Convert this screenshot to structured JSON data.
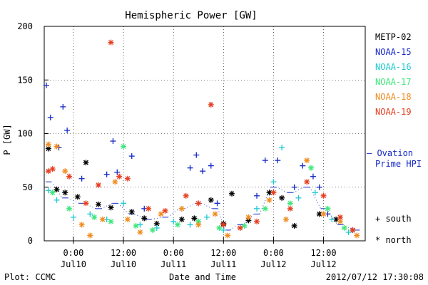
{
  "chart_data": {
    "type": "scatter",
    "title": "Hemispheric Power [GW]",
    "ylabel": "P [GW]",
    "xlabel": "Date and Time",
    "ylim": [
      0,
      200
    ],
    "xlim": [
      "2012-07-09T17:00",
      "2012-07-12T22:00"
    ],
    "y_ticks": [
      0,
      50,
      100,
      150,
      200
    ],
    "x_ticks": [
      {
        "time": "2012-07-10T00:00",
        "label1": "0:00",
        "label2": "Jul10"
      },
      {
        "time": "2012-07-10T12:00",
        "label1": "12:00",
        "label2": "Jul10"
      },
      {
        "time": "2012-07-11T00:00",
        "label1": "0:00",
        "label2": "Jul11"
      },
      {
        "time": "2012-07-11T12:00",
        "label1": "12:00",
        "label2": "Jul11"
      },
      {
        "time": "2012-07-12T00:00",
        "label1": "0:00",
        "label2": "Jul12"
      },
      {
        "time": "2012-07-12T12:00",
        "label1": "12:00",
        "label2": "Jul12"
      }
    ],
    "grid": true,
    "legend": {
      "placement": "right",
      "symbols": [
        {
          "glyph": "+",
          "label": "south"
        },
        {
          "glyph": "*",
          "label": "north"
        }
      ],
      "ovation_label_1": "— Ovation",
      "ovation_label_2": "Prime HPI"
    },
    "series": [
      {
        "name": "METP-02",
        "color": "#000000",
        "marker": "*",
        "points": [
          [
            "2012-07-09T18:00",
            86
          ],
          [
            "2012-07-09T20:00",
            48
          ],
          [
            "2012-07-09T22:00",
            45
          ],
          [
            "2012-07-10T01:00",
            41
          ],
          [
            "2012-07-10T03:00",
            73
          ],
          [
            "2012-07-10T06:00",
            34
          ],
          [
            "2012-07-10T09:00",
            31
          ],
          [
            "2012-07-10T14:00",
            27
          ],
          [
            "2012-07-10T17:00",
            21
          ],
          [
            "2012-07-10T20:00",
            16
          ],
          [
            "2012-07-11T02:00",
            20
          ],
          [
            "2012-07-11T05:00",
            21
          ],
          [
            "2012-07-11T09:00",
            38
          ],
          [
            "2012-07-11T12:00",
            16
          ],
          [
            "2012-07-11T14:00",
            44
          ],
          [
            "2012-07-11T18:00",
            19
          ],
          [
            "2012-07-11T23:00",
            45
          ],
          [
            "2012-07-12T02:00",
            40
          ],
          [
            "2012-07-12T05:00",
            14
          ],
          [
            "2012-07-12T11:00",
            25
          ],
          [
            "2012-07-12T15:00",
            20
          ],
          [
            "2012-07-12T19:00",
            10
          ]
        ]
      },
      {
        "name": "NOAA-15",
        "color": "#1428c8",
        "marker": "+",
        "points": [
          [
            "2012-07-09T17:30",
            145
          ],
          [
            "2012-07-09T18:30",
            115
          ],
          [
            "2012-07-09T20:30",
            87
          ],
          [
            "2012-07-09T21:30",
            125
          ],
          [
            "2012-07-09T22:30",
            103
          ],
          [
            "2012-07-10T02:00",
            58
          ],
          [
            "2012-07-10T08:00",
            62
          ],
          [
            "2012-07-10T09:30",
            93
          ],
          [
            "2012-07-10T10:30",
            64
          ],
          [
            "2012-07-10T14:00",
            79
          ],
          [
            "2012-07-10T17:00",
            30
          ],
          [
            "2012-07-11T04:00",
            68
          ],
          [
            "2012-07-11T05:30",
            80
          ],
          [
            "2012-07-11T07:00",
            65
          ],
          [
            "2012-07-11T09:00",
            70
          ],
          [
            "2012-07-11T10:30",
            35
          ],
          [
            "2012-07-11T20:00",
            42
          ],
          [
            "2012-07-11T22:00",
            75
          ],
          [
            "2012-07-12T01:00",
            75
          ],
          [
            "2012-07-12T05:00",
            50
          ],
          [
            "2012-07-12T07:00",
            70
          ],
          [
            "2012-07-12T09:30",
            60
          ],
          [
            "2012-07-12T11:00",
            50
          ],
          [
            "2012-07-12T13:00",
            25
          ]
        ]
      },
      {
        "name": "NOAA-16",
        "color": "#1ec8d2",
        "marker": "+",
        "points": [
          [
            "2012-07-09T18:00",
            47
          ],
          [
            "2012-07-09T20:00",
            38
          ],
          [
            "2012-07-10T00:00",
            22
          ],
          [
            "2012-07-10T04:00",
            25
          ],
          [
            "2012-07-10T08:00",
            20
          ],
          [
            "2012-07-10T12:00",
            35
          ],
          [
            "2012-07-10T16:00",
            15
          ],
          [
            "2012-07-10T20:00",
            12
          ],
          [
            "2012-07-11T00:00",
            18
          ],
          [
            "2012-07-11T04:00",
            15
          ],
          [
            "2012-07-11T08:00",
            22
          ],
          [
            "2012-07-11T12:00",
            10
          ],
          [
            "2012-07-11T16:00",
            12
          ],
          [
            "2012-07-11T20:00",
            30
          ],
          [
            "2012-07-12T00:00",
            55
          ],
          [
            "2012-07-12T02:00",
            87
          ],
          [
            "2012-07-12T06:00",
            40
          ],
          [
            "2012-07-12T10:00",
            45
          ],
          [
            "2012-07-12T14:00",
            20
          ],
          [
            "2012-07-12T18:00",
            8
          ]
        ]
      },
      {
        "name": "NOAA-17",
        "color": "#3ce67a",
        "marker": "*",
        "points": [
          [
            "2012-07-09T19:00",
            45
          ],
          [
            "2012-07-09T23:00",
            30
          ],
          [
            "2012-07-10T05:00",
            22
          ],
          [
            "2012-07-10T09:00",
            18
          ],
          [
            "2012-07-10T12:00",
            88
          ],
          [
            "2012-07-10T15:00",
            14
          ],
          [
            "2012-07-10T19:00",
            10
          ],
          [
            "2012-07-11T01:00",
            15
          ],
          [
            "2012-07-11T06:00",
            18
          ],
          [
            "2012-07-11T11:00",
            12
          ],
          [
            "2012-07-11T17:00",
            14
          ],
          [
            "2012-07-11T22:00",
            30
          ],
          [
            "2012-07-12T04:00",
            35
          ],
          [
            "2012-07-12T09:00",
            68
          ],
          [
            "2012-07-12T13:00",
            30
          ],
          [
            "2012-07-12T17:00",
            12
          ]
        ]
      },
      {
        "name": "NOAA-18",
        "color": "#f08c1e",
        "marker": "*",
        "points": [
          [
            "2012-07-09T18:00",
            90
          ],
          [
            "2012-07-09T20:00",
            88
          ],
          [
            "2012-07-09T22:00",
            65
          ],
          [
            "2012-07-10T02:00",
            15
          ],
          [
            "2012-07-10T04:00",
            5
          ],
          [
            "2012-07-10T07:00",
            20
          ],
          [
            "2012-07-10T10:00",
            55
          ],
          [
            "2012-07-10T13:00",
            20
          ],
          [
            "2012-07-10T16:00",
            8
          ],
          [
            "2012-07-10T21:00",
            25
          ],
          [
            "2012-07-11T02:00",
            30
          ],
          [
            "2012-07-11T06:00",
            15
          ],
          [
            "2012-07-11T10:00",
            25
          ],
          [
            "2012-07-11T13:00",
            5
          ],
          [
            "2012-07-11T18:00",
            22
          ],
          [
            "2012-07-11T23:00",
            38
          ],
          [
            "2012-07-12T03:00",
            20
          ],
          [
            "2012-07-12T08:00",
            75
          ],
          [
            "2012-07-12T12:00",
            25
          ],
          [
            "2012-07-12T16:00",
            18
          ],
          [
            "2012-07-12T20:00",
            5
          ]
        ]
      },
      {
        "name": "NOAA-19",
        "color": "#e63c1e",
        "marker": "*",
        "points": [
          [
            "2012-07-09T18:00",
            65
          ],
          [
            "2012-07-09T19:00",
            67
          ],
          [
            "2012-07-09T23:00",
            60
          ],
          [
            "2012-07-10T03:00",
            35
          ],
          [
            "2012-07-10T06:00",
            52
          ],
          [
            "2012-07-10T09:00",
            185
          ],
          [
            "2012-07-10T11:00",
            60
          ],
          [
            "2012-07-10T13:00",
            58
          ],
          [
            "2012-07-10T18:00",
            30
          ],
          [
            "2012-07-10T22:00",
            28
          ],
          [
            "2012-07-11T03:00",
            42
          ],
          [
            "2012-07-11T06:00",
            35
          ],
          [
            "2012-07-11T09:00",
            127
          ],
          [
            "2012-07-11T12:00",
            15
          ],
          [
            "2012-07-11T16:00",
            12
          ],
          [
            "2012-07-11T20:00",
            18
          ],
          [
            "2012-07-12T00:00",
            45
          ],
          [
            "2012-07-12T04:00",
            30
          ],
          [
            "2012-07-12T08:00",
            55
          ],
          [
            "2012-07-12T12:00",
            42
          ],
          [
            "2012-07-12T16:00",
            22
          ],
          [
            "2012-07-12T19:00",
            10
          ]
        ]
      }
    ],
    "ovation_hpi": {
      "color": "#1428c8",
      "points": [
        [
          "2012-07-09T18:00",
          55
        ],
        [
          "2012-07-09T22:00",
          40
        ],
        [
          "2012-07-10T02:00",
          35
        ],
        [
          "2012-07-10T06:00",
          30
        ],
        [
          "2012-07-10T10:00",
          35
        ],
        [
          "2012-07-10T14:00",
          25
        ],
        [
          "2012-07-10T18:00",
          20
        ],
        [
          "2012-07-10T22:00",
          22
        ],
        [
          "2012-07-11T02:00",
          30
        ],
        [
          "2012-07-11T06:00",
          35
        ],
        [
          "2012-07-11T10:00",
          30
        ],
        [
          "2012-07-11T13:00",
          10
        ],
        [
          "2012-07-11T16:00",
          15
        ],
        [
          "2012-07-11T20:00",
          25
        ],
        [
          "2012-07-12T00:00",
          50
        ],
        [
          "2012-07-12T04:00",
          45
        ],
        [
          "2012-07-12T08:00",
          50
        ],
        [
          "2012-07-12T12:00",
          30
        ],
        [
          "2012-07-12T16:00",
          15
        ],
        [
          "2012-07-12T20:00",
          10
        ]
      ]
    }
  },
  "footer": {
    "left": "Plot: CCMC",
    "right": "2012/07/12 17:30:08"
  }
}
